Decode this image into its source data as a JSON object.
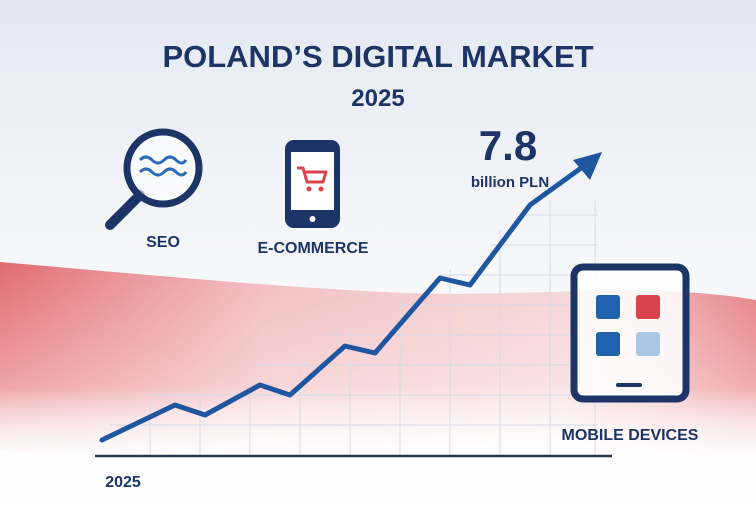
{
  "header": {
    "title": "POLAND’S DIGITAL MARKET",
    "subtitle": "2025"
  },
  "highlight": {
    "value": 7.8,
    "unit": "billion PLN"
  },
  "icons": [
    {
      "label": "SEO"
    },
    {
      "label": "E-COMMERCE"
    },
    {
      "label": "MOBILE DEVICES"
    }
  ],
  "axis": {
    "start_label": "2025"
  }
}
